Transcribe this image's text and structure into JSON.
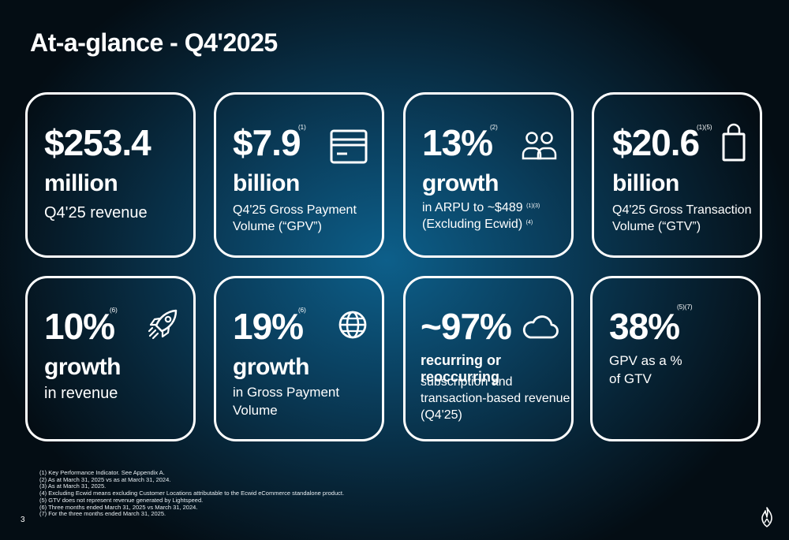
{
  "title": "At-a-glance - Q4'2025",
  "cards": [
    {
      "value": "$253.4",
      "sup": "",
      "unit": "million",
      "desc": "Q4'25 revenue",
      "icon": ""
    },
    {
      "value": "$7.9",
      "sup": "(1)",
      "unit": "billion",
      "desc1": "Q4'25 Gross Payment",
      "desc2": "Volume (“GPV”)",
      "icon": "credit-card-icon"
    },
    {
      "value": "13%",
      "sup": "(2)",
      "unit": "growth",
      "desc1": "in ARPU  to ~$489",
      "desc1_sup": "(1)(3)",
      "desc2": "(Excluding Ecwid)",
      "desc2_sup": "(4)",
      "icon": "users-icon"
    },
    {
      "value": "$20.6",
      "sup": "(1)(5)",
      "unit": "billion",
      "desc1": "Q4'25 Gross Transaction",
      "desc2": "Volume (“GTV”)",
      "icon": "shopping-bag-icon"
    },
    {
      "value": "10%",
      "sup": "(6)",
      "unit": "growth",
      "desc": "in revenue",
      "icon": "rocket-icon"
    },
    {
      "value": "19%",
      "sup": "(6)",
      "unit": "growth",
      "desc1": "in Gross Payment",
      "desc2": "Volume",
      "icon": "globe-icon"
    },
    {
      "value": "~97%",
      "sup": "",
      "unit": "recurring or reoccurring",
      "desc1": "subscription and",
      "desc2": "transaction-based revenue",
      "desc3": "(Q4'25)",
      "icon": "cloud-icon"
    },
    {
      "value": "38%",
      "sup": "(5)(7)",
      "unit": "",
      "desc1": "GPV as a %",
      "desc2": "of GTV",
      "icon": ""
    }
  ],
  "footnotes": [
    "(1) Key Performance Indicator. See Appendix A.",
    "(2) As at March 31, 2025 vs as at March 31, 2024.",
    "(3) As at March 31, 2025.",
    "(4) Excluding Ecwid means excluding Customer Locations attributable to the Ecwid eCommerce standalone product.",
    "(5) GTV does not represent revenue generated by Lightspeed.",
    "(6) Three months ended March 31, 2025 vs March 31, 2024.",
    "(7) For the three months ended March 31, 2025."
  ],
  "page_number": "3",
  "icons": {
    "logo": "lightspeed-flame-logo"
  },
  "colors": {
    "card_border": "#ffffff",
    "text": "#ffffff",
    "bg_center": "#0d5f8a",
    "bg_edge": "#040d14"
  }
}
